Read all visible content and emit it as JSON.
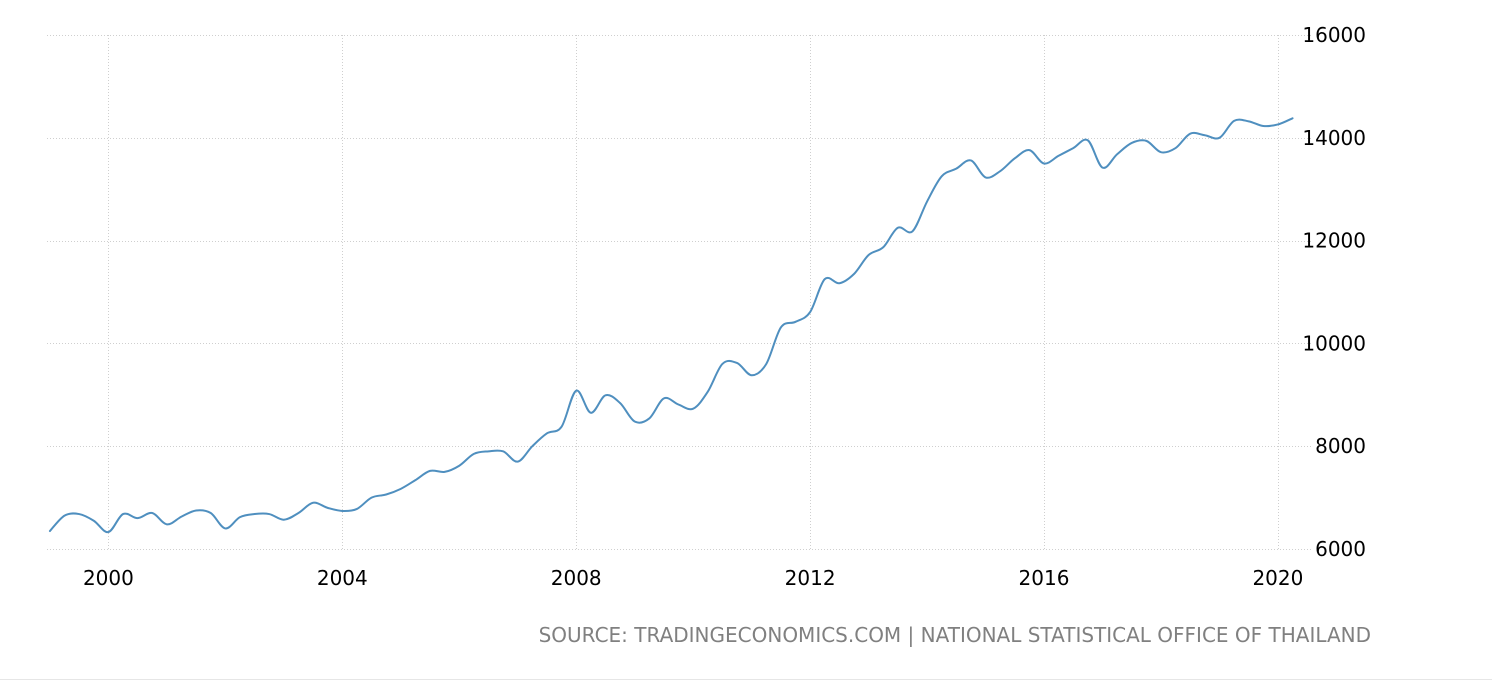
{
  "colors": {
    "line": "#4f8fbf",
    "grid": "#cfcfcf",
    "text": "#000000",
    "source": "#808080"
  },
  "source_text": "SOURCE: TRADINGECONOMICS.COM | NATIONAL STATISTICAL OFFICE OF THAILAND",
  "chart_data": {
    "type": "line",
    "title": "",
    "xlabel": "",
    "ylabel": "",
    "ylim": [
      6000,
      16000
    ],
    "xlim": [
      1998.95,
      2020.6
    ],
    "y_axis_side": "right",
    "grid": true,
    "grid_style": "dotted",
    "x_ticks": [
      2000,
      2004,
      2008,
      2012,
      2016,
      2020
    ],
    "x_tick_labels": [
      "2000",
      "2004",
      "2008",
      "2012",
      "2016",
      "2020"
    ],
    "y_ticks": [
      6000,
      8000,
      10000,
      12000,
      14000,
      16000
    ],
    "y_tick_labels": [
      "6000",
      "8000",
      "10000",
      "12000",
      "14000",
      "16000"
    ],
    "series": [
      {
        "x": [
          1999.0,
          1999.25,
          1999.5,
          1999.75,
          2000.0,
          2000.25,
          2000.5,
          2000.75,
          2001.0,
          2001.25,
          2001.5,
          2001.75,
          2002.0,
          2002.25,
          2002.5,
          2002.75,
          2003.0,
          2003.25,
          2003.5,
          2003.75,
          2004.0,
          2004.25,
          2004.5,
          2004.75,
          2005.0,
          2005.25,
          2005.5,
          2005.75,
          2006.0,
          2006.25,
          2006.5,
          2006.75,
          2007.0,
          2007.25,
          2007.5,
          2007.75,
          2008.0,
          2008.25,
          2008.5,
          2008.75,
          2009.0,
          2009.25,
          2009.5,
          2009.75,
          2010.0,
          2010.25,
          2010.5,
          2010.75,
          2011.0,
          2011.25,
          2011.5,
          2011.75,
          2012.0,
          2012.25,
          2012.5,
          2012.75,
          2013.0,
          2013.25,
          2013.5,
          2013.75,
          2014.0,
          2014.25,
          2014.5,
          2014.75,
          2015.0,
          2015.25,
          2015.5,
          2015.75,
          2016.0,
          2016.25,
          2016.5,
          2016.75,
          2017.0,
          2017.25,
          2017.5,
          2017.75,
          2018.0,
          2018.25,
          2018.5,
          2018.75,
          2019.0,
          2019.25,
          2019.5,
          2019.75,
          2020.0,
          2020.25
        ],
        "values": [
          6350,
          6650,
          6680,
          6550,
          6330,
          6680,
          6600,
          6700,
          6480,
          6630,
          6750,
          6700,
          6400,
          6620,
          6680,
          6680,
          6570,
          6700,
          6900,
          6800,
          6740,
          6780,
          7000,
          7060,
          7170,
          7340,
          7520,
          7500,
          7620,
          7850,
          7900,
          7900,
          7700,
          8000,
          8250,
          8380,
          9080,
          8650,
          8990,
          8840,
          8480,
          8540,
          8930,
          8810,
          8730,
          9060,
          9600,
          9620,
          9380,
          9600,
          10310,
          10420,
          10610,
          11250,
          11170,
          11350,
          11720,
          11870,
          12250,
          12180,
          12760,
          13250,
          13400,
          13560,
          13230,
          13350,
          13600,
          13760,
          13500,
          13650,
          13800,
          13950,
          13420,
          13680,
          13900,
          13940,
          13720,
          13800,
          14080,
          14050,
          14000,
          14330,
          14320,
          14230,
          14260,
          14380
        ]
      }
    ]
  }
}
